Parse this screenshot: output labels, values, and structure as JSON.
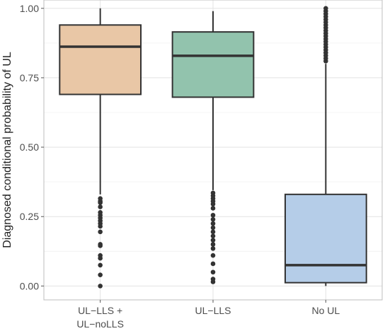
{
  "chart_data": {
    "type": "boxplot",
    "title": "",
    "xlabel": "",
    "ylabel": "Diagnosed conditional probability of UL",
    "ylim": [
      -0.05,
      1.03
    ],
    "yticks": [
      0.0,
      0.25,
      0.5,
      0.75,
      1.0
    ],
    "ytick_labels": [
      "0.00",
      "0.25",
      "0.50",
      "0.75",
      "1.00"
    ],
    "grid": true,
    "legend": "none",
    "categories": [
      {
        "label_lines": [
          "UL−LLS +",
          "UL−noLLS"
        ]
      },
      {
        "label_lines": [
          "UL−LLS"
        ]
      },
      {
        "label_lines": [
          "No UL"
        ]
      }
    ],
    "series": [
      {
        "color": "#e9c7a6",
        "whisker_low": 0.33,
        "q1": 0.69,
        "median": 0.862,
        "q3": 0.94,
        "whisker_high": 1.0,
        "outliers": [
          0.0,
          0.04,
          0.075,
          0.1,
          0.11,
          0.145,
          0.15,
          0.195,
          0.215,
          0.225,
          0.235,
          0.245,
          0.255,
          0.265,
          0.285,
          0.3,
          0.305,
          0.315
        ]
      },
      {
        "color": "#92c3ad",
        "whisker_low": 0.345,
        "q1": 0.68,
        "median": 0.829,
        "q3": 0.915,
        "whisker_high": 0.99,
        "outliers": [
          0.015,
          0.025,
          0.05,
          0.08,
          0.11,
          0.135,
          0.15,
          0.165,
          0.18,
          0.195,
          0.21,
          0.225,
          0.24,
          0.255,
          0.28,
          0.295,
          0.305,
          0.315,
          0.325,
          0.335
        ]
      },
      {
        "color": "#b5cde8",
        "whisker_low": 0.0,
        "q1": 0.012,
        "median": 0.075,
        "q3": 0.33,
        "whisker_high": 0.8,
        "outliers": [
          0.81,
          0.82,
          0.83,
          0.84,
          0.85,
          0.86,
          0.87,
          0.88,
          0.89,
          0.9,
          0.91,
          0.92,
          0.93,
          0.94,
          0.95,
          0.96,
          0.97,
          0.98,
          0.99,
          1.0
        ]
      }
    ]
  }
}
